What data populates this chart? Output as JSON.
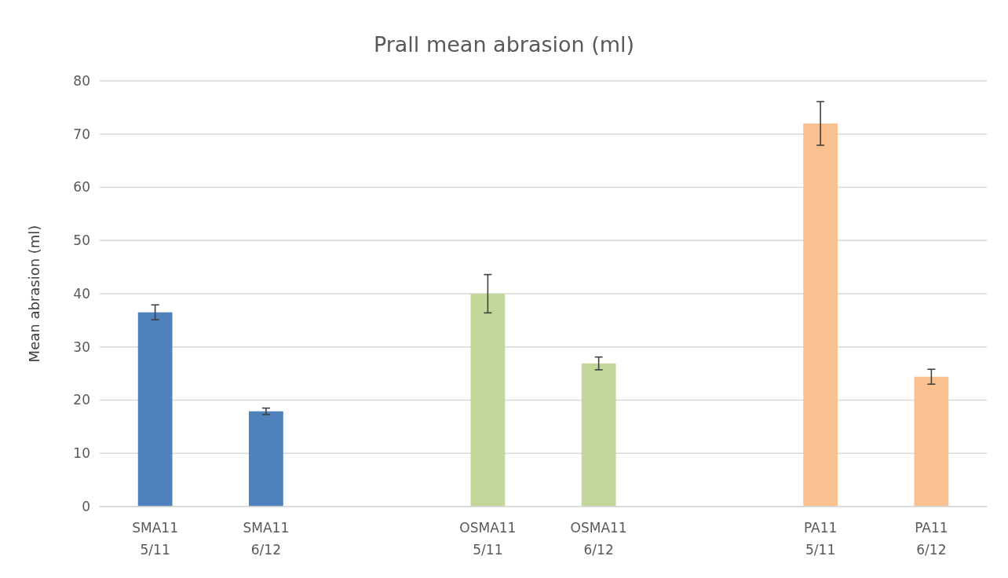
{
  "chart_data": {
    "type": "bar",
    "title": "Prall mean abrasion (ml)",
    "ylabel": "Mean abrasion (ml)",
    "categories": [
      "SMA11\n5/11",
      "SMA11\n6/12",
      null,
      "OSMA11\n5/11",
      "OSMA11\n6/12",
      null,
      "PA11\n5/11",
      "PA11\n6/12"
    ],
    "values": [
      36.5,
      17.9,
      null,
      40,
      26.9,
      null,
      72,
      24.4
    ],
    "colors": [
      "#4f81bd",
      "#4f81bd",
      null,
      "#c4d79b",
      "#c4d79b",
      null,
      "#fac090",
      "#fac090"
    ],
    "errors": [
      1.4,
      0.6,
      null,
      3.6,
      1.2,
      null,
      4.1,
      1.4
    ],
    "ylim": [
      0,
      80
    ],
    "yticks": [
      0,
      10,
      20,
      30,
      40,
      50,
      60,
      70,
      80
    ],
    "grid": "y"
  }
}
